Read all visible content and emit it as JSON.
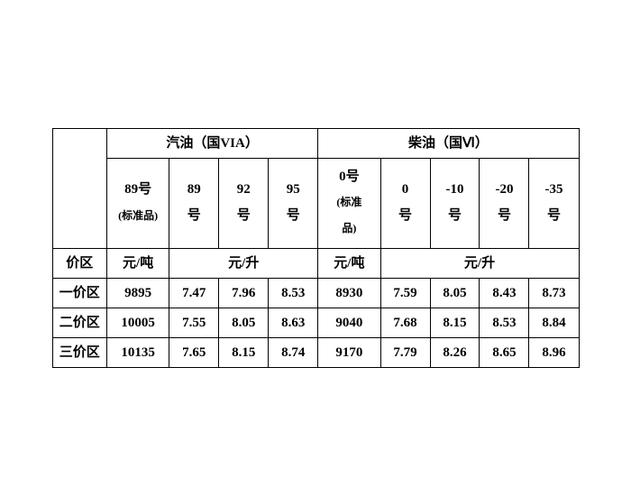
{
  "header": {
    "gasoline_title": "汽油（国VIA）",
    "diesel_title": "柴油（国Ⅵ）",
    "gasoline_cols": {
      "c0_line1": "89号",
      "c0_line2": "(标准品)",
      "c1_line1": "89",
      "c1_line2": "号",
      "c2_line1": "92",
      "c2_line2": "号",
      "c3_line1": "95",
      "c3_line2": "号"
    },
    "diesel_cols": {
      "c0_line1": "0号",
      "c0_line2": "(标准",
      "c0_line3": "品)",
      "c1_line1": "0",
      "c1_line2": "号",
      "c2_line1": "-10",
      "c2_line2": "号",
      "c3_line1": "-20",
      "c3_line2": "号",
      "c4_line1": "-35",
      "c4_line2": "号"
    }
  },
  "units_row": {
    "label": "价区",
    "ton": "元/吨",
    "liter": "元/升"
  },
  "rows": [
    {
      "label": "一价区",
      "g_ton": "9895",
      "g89": "7.47",
      "g92": "7.96",
      "g95": "8.53",
      "d_ton": "8930",
      "d0": "7.59",
      "d10": "8.05",
      "d20": "8.43",
      "d35": "8.73"
    },
    {
      "label": "二价区",
      "g_ton": "10005",
      "g89": "7.55",
      "g92": "8.05",
      "g95": "8.63",
      "d_ton": "9040",
      "d0": "7.68",
      "d10": "8.15",
      "d20": "8.53",
      "d35": "8.84"
    },
    {
      "label": "三价区",
      "g_ton": "10135",
      "g89": "7.65",
      "g92": "8.15",
      "g95": "8.74",
      "d_ton": "9170",
      "d0": "7.79",
      "d10": "8.26",
      "d20": "8.65",
      "d35": "8.96"
    }
  ],
  "style": {
    "border_color": "#000000",
    "text_color": "#000000",
    "background": "#ffffff",
    "main_fontsize": 15,
    "sub_fontsize": 12
  }
}
